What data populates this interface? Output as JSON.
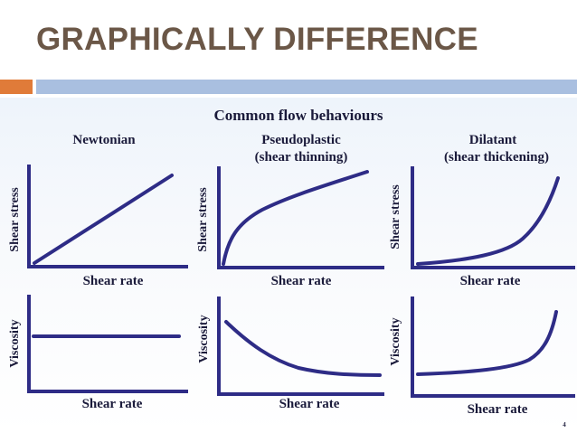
{
  "slide": {
    "title": "GRAPHICALLY DIFFERENCE"
  },
  "figure": {
    "heading": "Common flow behaviours",
    "columns": [
      {
        "title_line1": "Newtonian",
        "title_line2": ""
      },
      {
        "title_line1": "Pseudoplastic",
        "title_line2": "(shear thinning)"
      },
      {
        "title_line1": "Dilatant",
        "title_line2": "(shear thickening)"
      }
    ],
    "stress_axis_label": "Shear stress",
    "viscosity_axis_label": "Viscosity",
    "rate_axis_label": "Shear rate",
    "page_number": "4",
    "colors": {
      "axis": "#2e2c86",
      "title": "#6b5747",
      "accent_orange": "#e07b39",
      "accent_blue": "#a9bfe0"
    }
  }
}
